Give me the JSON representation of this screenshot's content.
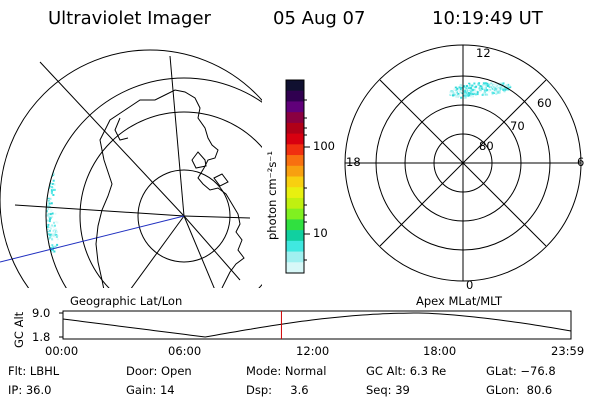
{
  "header": {
    "title": "Ultraviolet Imager",
    "date": "05 Aug 07",
    "time": "10:19:49 UT"
  },
  "colorbar": {
    "unit_label": "photon cm⁻²s⁻¹",
    "ticks": [
      "100",
      "10"
    ],
    "colors": [
      "#101030",
      "#300050",
      "#60007a",
      "#8a0040",
      "#b00018",
      "#d80010",
      "#f03010",
      "#f87010",
      "#f8a010",
      "#f8d010",
      "#e8f010",
      "#c0f010",
      "#80f020",
      "#30e040",
      "#10d0a0",
      "#40e8e0",
      "#a0f0f0",
      "#d8f8f8"
    ]
  },
  "left_map": {
    "caption": "Geographic Lat/Lon",
    "aurora_color": "#3ce0e0"
  },
  "right_map": {
    "caption": "Apex MLat/MLT",
    "lat_labels": [
      "80",
      "70",
      "60"
    ],
    "mlt_labels": {
      "top": "12",
      "bottom": "0",
      "left": "18",
      "right": "6"
    }
  },
  "altitude_plot": {
    "ylabel": "GC Alt",
    "ymax": "9.0",
    "ymin": "1.8",
    "xticks": [
      "00:00",
      "06:00",
      "12:00",
      "18:00",
      "23:59"
    ],
    "current_time_fraction": 0.43,
    "marker_color": "#d00000"
  },
  "info": {
    "flt": "Flt: LBHL",
    "door": "Door: Open",
    "mode": "Mode: Normal",
    "gcalt": "GC Alt: 6.3 Re",
    "glat": "GLat: −76.8",
    "ip": "IP: 36.0",
    "gain": "Gain: 14",
    "dsp": "Dsp:     3.6",
    "seq": "Seq: 39",
    "glon": "GLon:  80.6"
  }
}
